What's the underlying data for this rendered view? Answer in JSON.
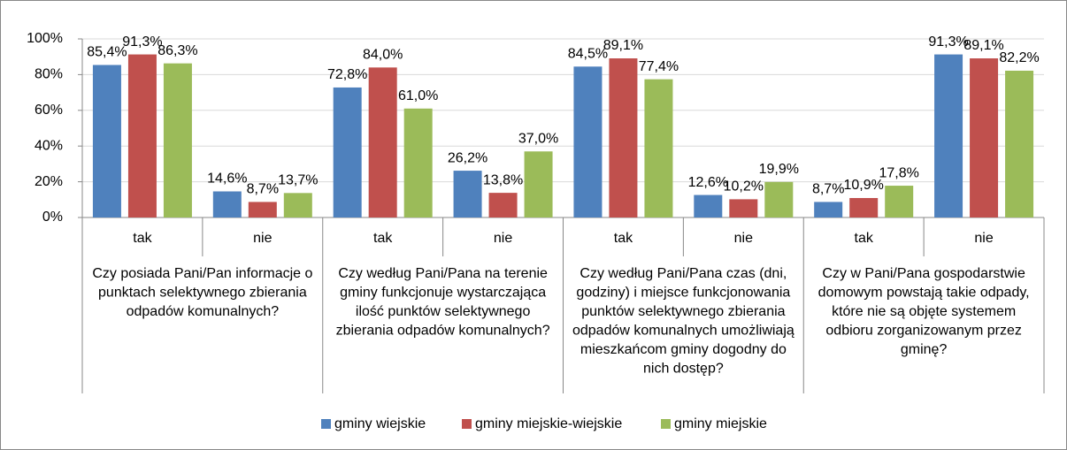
{
  "chart_data": {
    "type": "bar",
    "categories": [
      "tak",
      "nie",
      "tak",
      "nie",
      "tak",
      "nie",
      "tak",
      "nie"
    ],
    "groups": [
      {
        "lines": [
          "Czy posiada Pani/Pan informacje o",
          "punktach selektywnego zbierania",
          "odpadów komunalnych?"
        ]
      },
      {
        "lines": [
          "Czy według Pani/Pana na terenie",
          "gminy funkcjonuje wystarczająca",
          "ilość punktów selektywnego",
          "zbierania odpadów komunalnych?"
        ]
      },
      {
        "lines": [
          "Czy według Pani/Pana czas (dni,",
          "godziny) i miejsce funkcjonowania",
          "punktów selektywnego zbierania",
          "odpadów komunalnych umożliwiają",
          "mieszkańcom gminy dogodny do",
          "nich dostęp?"
        ]
      },
      {
        "lines": [
          "Czy w Pani/Pana gospodarstwie",
          "domowym powstają takie odpady,",
          "które nie są objęte systemem",
          "odbioru zorganizowanym przez",
          "gminę?"
        ]
      }
    ],
    "series": [
      {
        "name": "gminy wiejskie",
        "color": "#4f81bd",
        "values": [
          85.4,
          14.6,
          72.8,
          26.2,
          84.5,
          12.6,
          8.7,
          91.3
        ],
        "value_labels": [
          "85,4%",
          "14,6%",
          "72,8%",
          "26,2%",
          "84,5%",
          "12,6%",
          "8,7%",
          "91,3%"
        ]
      },
      {
        "name": "gminy miejskie-wiejskie",
        "color": "#c0504d",
        "values": [
          91.3,
          8.7,
          84.0,
          13.8,
          89.1,
          10.2,
          10.9,
          89.1
        ],
        "value_labels": [
          "91,3%",
          "8,7%",
          "84,0%",
          "13,8%",
          "89,1%",
          "10,2%",
          "10,9%",
          "89,1%"
        ]
      },
      {
        "name": "gminy miejskie",
        "color": "#9bbb59",
        "values": [
          86.3,
          13.7,
          61.0,
          37.0,
          77.4,
          19.9,
          17.8,
          82.2
        ],
        "value_labels": [
          "86,3%",
          "13,7%",
          "61,0%",
          "37,0%",
          "77,4%",
          "19,9%",
          "17,8%",
          "82,2%"
        ]
      }
    ],
    "ylim": [
      0,
      100
    ],
    "yticks": [
      {
        "value": 0,
        "label": "0%"
      },
      {
        "value": 20,
        "label": "20%"
      },
      {
        "value": 40,
        "label": "40%"
      },
      {
        "value": 60,
        "label": "60%"
      },
      {
        "value": 80,
        "label": "80%"
      },
      {
        "value": 100,
        "label": "100%"
      }
    ],
    "grid": true,
    "legend": "bottom"
  }
}
